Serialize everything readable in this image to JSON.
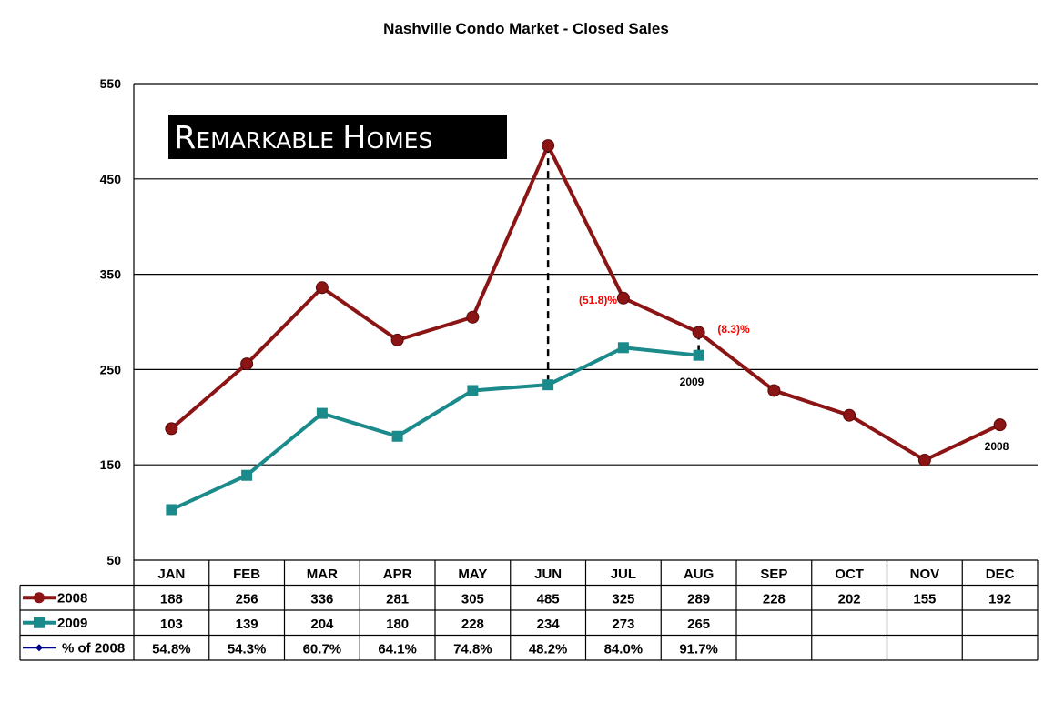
{
  "chart_data": {
    "type": "line",
    "title": "Nashville Condo Market - Closed Sales",
    "categories": [
      "JAN",
      "FEB",
      "MAR",
      "APR",
      "MAY",
      "JUN",
      "JUL",
      "AUG",
      "SEP",
      "OCT",
      "NOV",
      "DEC"
    ],
    "series": [
      {
        "name": "2008",
        "color": "#8b1414",
        "marker": "circle",
        "values": [
          188,
          256,
          336,
          281,
          305,
          485,
          325,
          289,
          228,
          202,
          155,
          192
        ],
        "table_values": [
          "188",
          "256",
          "336",
          "281",
          "305",
          "485",
          "325",
          "289",
          "228",
          "202",
          "155",
          "192"
        ]
      },
      {
        "name": "2009",
        "color": "#1a8a8a",
        "marker": "square",
        "values": [
          103,
          139,
          204,
          180,
          228,
          234,
          273,
          265,
          null,
          null,
          null,
          null
        ],
        "table_values": [
          "103",
          "139",
          "204",
          "180",
          "228",
          "234",
          "273",
          "265",
          "",
          "",
          "",
          ""
        ]
      },
      {
        "name": "% of 2008",
        "color": "#00008b",
        "marker": "diamond",
        "values": [
          54.8,
          54.3,
          60.7,
          64.1,
          74.8,
          48.2,
          84.0,
          91.7,
          null,
          null,
          null,
          null
        ],
        "table_values": [
          "54.8%",
          "54.3%",
          "60.7%",
          "64.1%",
          "74.8%",
          "48.2%",
          "84.0%",
          "91.7%",
          "",
          "",
          "",
          ""
        ],
        "plotted": false
      }
    ],
    "ylim": [
      50,
      550
    ],
    "yticks": [
      "50",
      "150",
      "250",
      "350",
      "450",
      "550"
    ],
    "grid": true,
    "data_table": true,
    "annotations": [
      {
        "text": "(51.8)%",
        "category": "JUN",
        "color": "#ff0000"
      },
      {
        "text": "(8.3)%",
        "category": "AUG",
        "color": "#ff0000"
      },
      {
        "text": "2009",
        "category": "AUG",
        "color": "#000000"
      },
      {
        "text": "2008",
        "category": "DEC",
        "color": "#000000"
      }
    ]
  },
  "logo": {
    "text": "Remarkable Homes",
    "parts": [
      "R",
      "EMARKABLE",
      "H",
      "OMES"
    ]
  }
}
